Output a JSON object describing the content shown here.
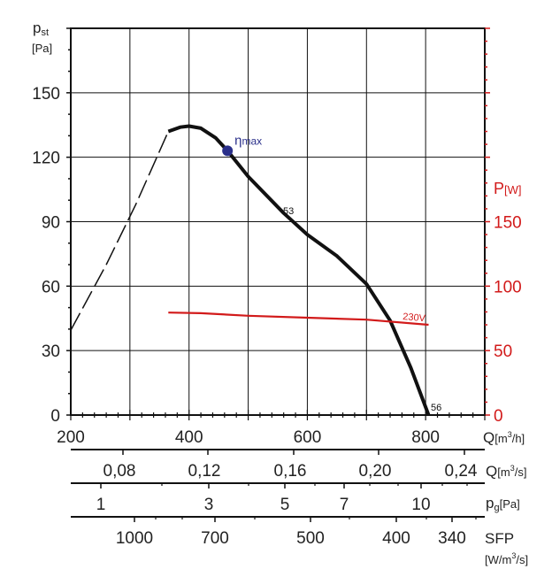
{
  "chart_data": {
    "type": "line",
    "y_label": {
      "main": "p",
      "sub": "st",
      "unit": "[Pa]"
    },
    "y2_label": {
      "main": "P",
      "unit": "[W]"
    },
    "x_label": {
      "main": "Q",
      "unit": "[m",
      "sup": "3",
      "unit_end": "/h]"
    },
    "xlim": [
      200,
      900
    ],
    "ylim": [
      0,
      180
    ],
    "y2lim": [
      0,
      300
    ],
    "x_ticks": [
      200,
      400,
      600,
      800
    ],
    "y_ticks": [
      0,
      30,
      60,
      90,
      120,
      150
    ],
    "y2_ticks": [
      0,
      50,
      100,
      150
    ],
    "grid": true,
    "colors": {
      "pressure": "#111111",
      "power": "#d21a1a",
      "eta": "#2a2f8a",
      "axis2": "#d21a1a"
    },
    "series": [
      {
        "name": "pressure-dashed",
        "style": "dashed",
        "x": [
          200,
          260,
          310,
          365
        ],
        "y": [
          39.5,
          70,
          98,
          132
        ]
      },
      {
        "name": "pressure",
        "label": "53",
        "x": [
          365,
          385,
          400,
          420,
          445,
          465,
          500,
          560,
          600,
          650,
          700,
          740,
          775,
          805
        ],
        "y": [
          132,
          134,
          134.5,
          133.5,
          129,
          123,
          111,
          94,
          84,
          74,
          61,
          44,
          22,
          0
        ]
      },
      {
        "name": "power",
        "label": "230V",
        "axis": "y2",
        "x": [
          365,
          420,
          500,
          600,
          700,
          805
        ],
        "y": [
          79.5,
          79,
          77,
          75.5,
          74,
          70
        ]
      }
    ],
    "annotations": {
      "eta": {
        "symbol": "η",
        "text": "max",
        "x": 465,
        "y": 123
      },
      "curve_label": "53",
      "end_label": "56",
      "power_label": "230V"
    },
    "secondary_scales": [
      {
        "name": "q-m3s",
        "label": "Q",
        "unit": "[m",
        "sup": "3",
        "unit_end": "/s]",
        "ticks": [
          "0,08",
          "0,12",
          "0,16",
          "0,20",
          "0,24"
        ]
      },
      {
        "name": "pg",
        "label": "p",
        "sub": "g",
        "unit": "[Pa]",
        "ticks": [
          "1",
          "3",
          "5",
          "7",
          "10"
        ]
      },
      {
        "name": "sfp",
        "label": "SFP",
        "unit": "[W/m",
        "sup": "3",
        "unit_end": "/s]",
        "ticks": [
          "1000",
          "700",
          "500",
          "400",
          "340"
        ]
      }
    ]
  }
}
